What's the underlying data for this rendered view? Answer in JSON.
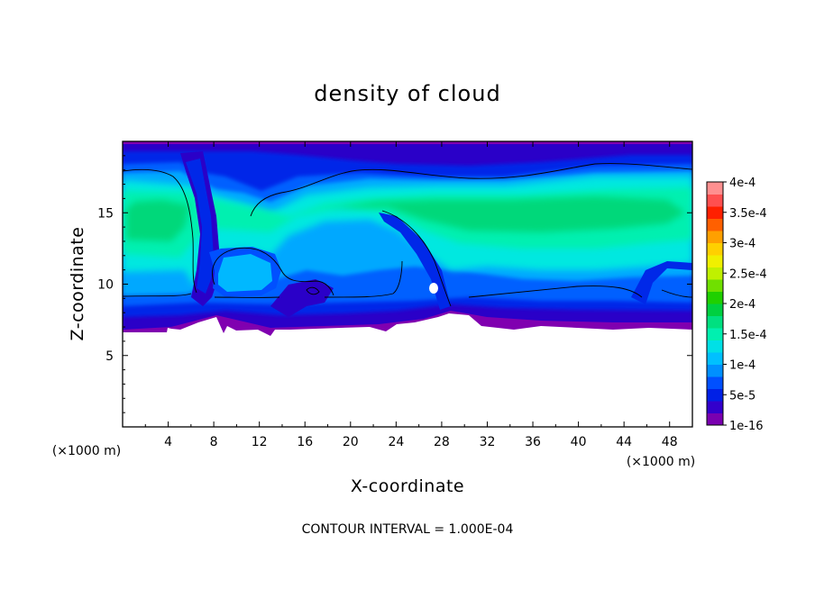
{
  "chart_data": {
    "type": "heatmap",
    "title": "density of cloud",
    "xlabel": "X-coordinate",
    "ylabel": "Z-coordinate",
    "x_unit": "(×1000 m)",
    "z_unit": "(×1000 m)",
    "footer": "CONTOUR INTERVAL = 1.000E-04",
    "xlim": [
      0,
      50
    ],
    "ylim": [
      0,
      20
    ],
    "x_ticks": [
      "4",
      "8",
      "12",
      "16",
      "20",
      "24",
      "28",
      "32",
      "36",
      "40",
      "44",
      "48"
    ],
    "y_ticks": [
      "5",
      "10",
      "15"
    ],
    "x_tick_values": [
      4,
      8,
      12,
      16,
      20,
      24,
      28,
      32,
      36,
      40,
      44,
      48
    ],
    "y_tick_values": [
      5,
      10,
      15
    ],
    "colorbar": {
      "labels": [
        "1e-16",
        "5e-5",
        "1e-4",
        "1.5e-4",
        "2e-4",
        "2.5e-4",
        "3e-4",
        "3.5e-4",
        "4e-4"
      ],
      "colors": [
        "#7a00b0",
        "#3300cc",
        "#0020e6",
        "#0050ff",
        "#0090ff",
        "#00c0ff",
        "#00e0e6",
        "#00f0b0",
        "#00e080",
        "#00d040",
        "#20d000",
        "#70e000",
        "#c0f000",
        "#f0f000",
        "#ffd000",
        "#ffa000",
        "#ff6000",
        "#ff2000",
        "#ff5050",
        "#ff9090"
      ]
    },
    "cloud_base_z": 6.7,
    "cloud_top_z": 18.5
  }
}
